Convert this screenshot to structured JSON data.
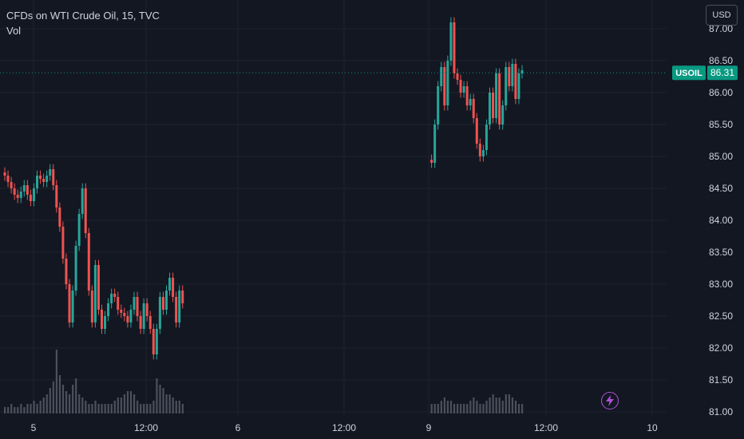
{
  "legend": {
    "title": "CFDs on WTI Crude Oil, 15, TVC",
    "indicator": "Vol"
  },
  "currency_button": "USD",
  "price_label": {
    "symbol": "USOIL",
    "value": "86.31"
  },
  "colors": {
    "background": "#131722",
    "grid": "#1f2330",
    "up": "#26a69a",
    "down": "#ef5350",
    "text": "#d1d4dc",
    "price_label_bg": "#089981",
    "volume": "#5b5f6b",
    "bolt": "#b14fd8"
  },
  "icons": {
    "bolt": "lightning-bolt-icon"
  },
  "chart_data": {
    "type": "candlestick",
    "title": "CFDs on WTI Crude Oil, 15, TVC",
    "ylim": [
      80.95,
      87.45
    ],
    "y_ticks": [
      "87.00",
      "86.50",
      "86.00",
      "85.50",
      "85.00",
      "84.50",
      "84.00",
      "83.50",
      "83.00",
      "82.50",
      "82.00",
      "81.50",
      "81.00"
    ],
    "x_ticks": [
      "5",
      "12:00",
      "6",
      "12:00",
      "9",
      "12:00",
      "10"
    ],
    "last_price": 86.31,
    "series": [
      {
        "name": "USOIL",
        "segments": [
          {
            "start_index": 0,
            "points": [
              84.7,
              84.6,
              84.5,
              84.4,
              84.35,
              84.45,
              84.55,
              84.4,
              84.3,
              84.5,
              84.7,
              84.65,
              84.6,
              84.7,
              84.8,
              84.55,
              84.2,
              83.9,
              83.4,
              83.0,
              82.4,
              82.9,
              83.6,
              84.1,
              84.5,
              83.8,
              82.9,
              82.4,
              83.3,
              82.6,
              82.3,
              82.5,
              82.7,
              82.85,
              82.8,
              82.6,
              82.55,
              82.5,
              82.4,
              82.6,
              82.8,
              82.5,
              82.3,
              82.7,
              82.5,
              82.3,
              81.9,
              82.3,
              82.8,
              82.6,
              82.9,
              83.1,
              82.8,
              82.4,
              82.9,
              82.7
            ]
          },
          {
            "start_index": 132,
            "points": [
              84.9,
              85.5,
              86.1,
              86.4,
              85.8,
              86.5,
              87.1,
              86.3,
              86.2,
              86.0,
              86.1,
              85.8,
              85.9,
              85.6,
              85.2,
              85.0,
              85.1,
              85.5,
              86.0,
              85.6,
              86.3,
              85.5,
              85.8,
              86.4,
              86.1,
              86.45,
              85.9,
              86.3,
              86.35
            ]
          }
        ]
      }
    ],
    "volume": {
      "name": "Vol",
      "series": [
        {
          "start_index": 0,
          "points": [
            2,
            2,
            3,
            2,
            2,
            3,
            2,
            3,
            3,
            4,
            3,
            4,
            5,
            6,
            8,
            10,
            20,
            12,
            9,
            7,
            6,
            9,
            11,
            6,
            5,
            4,
            3,
            3,
            4,
            3,
            3,
            3,
            3,
            3,
            4,
            5,
            5,
            6,
            7,
            7,
            6,
            4,
            3,
            3,
            3,
            3,
            4,
            11,
            9,
            8,
            6,
            6,
            5,
            4,
            4,
            3
          ]
        },
        {
          "start_index": 132,
          "points": [
            3,
            3,
            3,
            4,
            5,
            4,
            4,
            3,
            3,
            3,
            3,
            3,
            4,
            5,
            4,
            3,
            3,
            4,
            5,
            6,
            5,
            5,
            4,
            6,
            6,
            5,
            4,
            3,
            3
          ]
        }
      ]
    }
  }
}
